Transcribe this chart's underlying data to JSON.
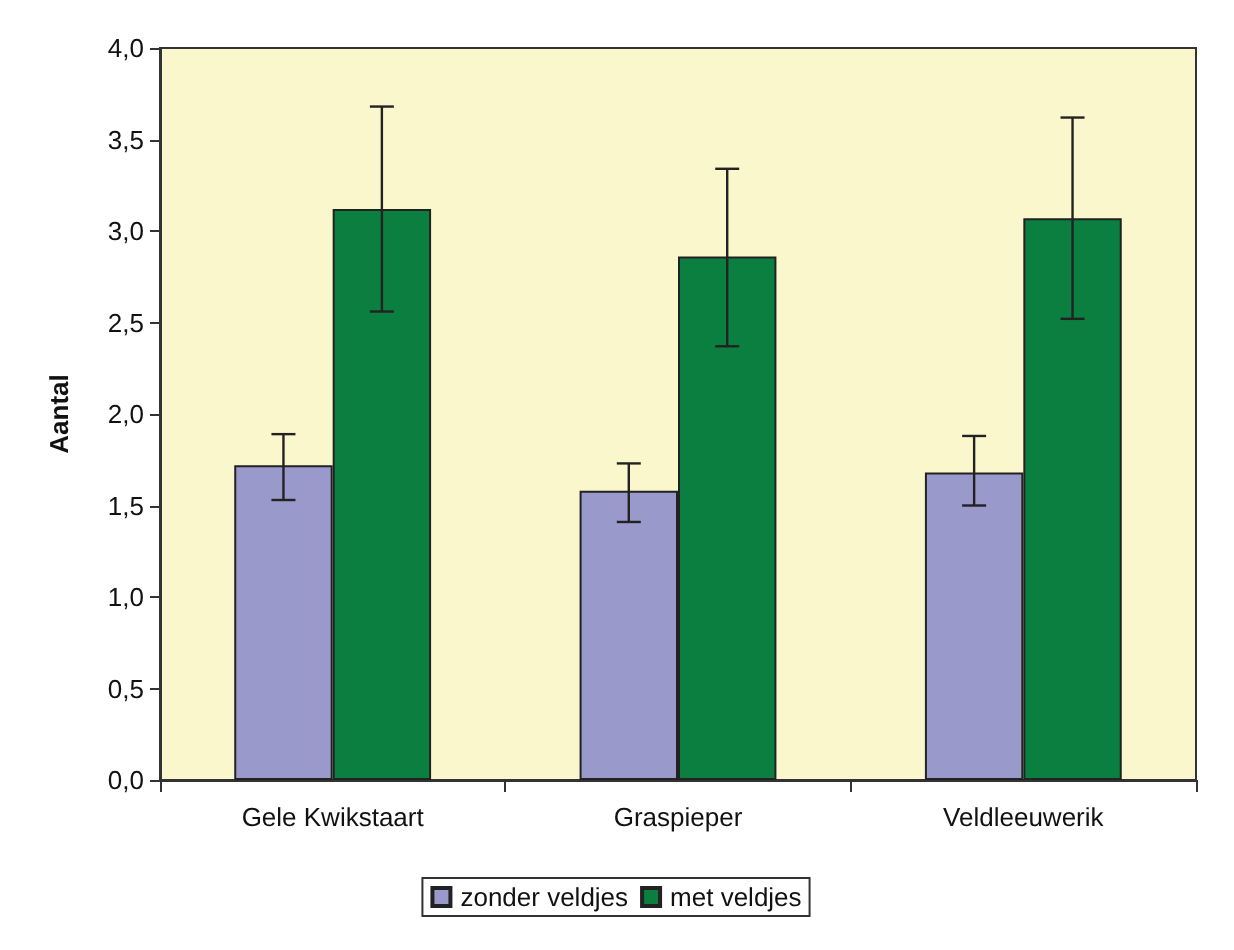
{
  "chart_data": {
    "type": "bar",
    "ylabel": "Aantal",
    "categories": [
      "Gele Kwikstaart",
      "Graspieper",
      "Veldleeuwerik"
    ],
    "series": [
      {
        "name": "zonder veldjes",
        "color": "#9999cc",
        "values": [
          1.72,
          1.58,
          1.68
        ],
        "errors": [
          [
            1.53,
            1.89
          ],
          [
            1.41,
            1.73
          ],
          [
            1.5,
            1.88
          ]
        ]
      },
      {
        "name": "met veldjes",
        "color": "#0a7f3f",
        "values": [
          3.12,
          2.86,
          3.07
        ],
        "errors": [
          [
            2.56,
            3.68
          ],
          [
            2.37,
            3.34
          ],
          [
            2.52,
            3.62
          ]
        ]
      }
    ],
    "ylim": [
      0,
      4
    ],
    "yticks": [
      {
        "value": 0,
        "label": "0,0"
      },
      {
        "value": 0.5,
        "label": "0,5"
      },
      {
        "value": 1,
        "label": "1,0"
      },
      {
        "value": 1.5,
        "label": "1,5"
      },
      {
        "value": 2,
        "label": "2,0"
      },
      {
        "value": 2.5,
        "label": "2,5"
      },
      {
        "value": 3,
        "label": "3,0"
      },
      {
        "value": 3.5,
        "label": "3,5"
      },
      {
        "value": 4,
        "label": "4,0"
      }
    ],
    "grid": false,
    "legend": "bottom"
  }
}
